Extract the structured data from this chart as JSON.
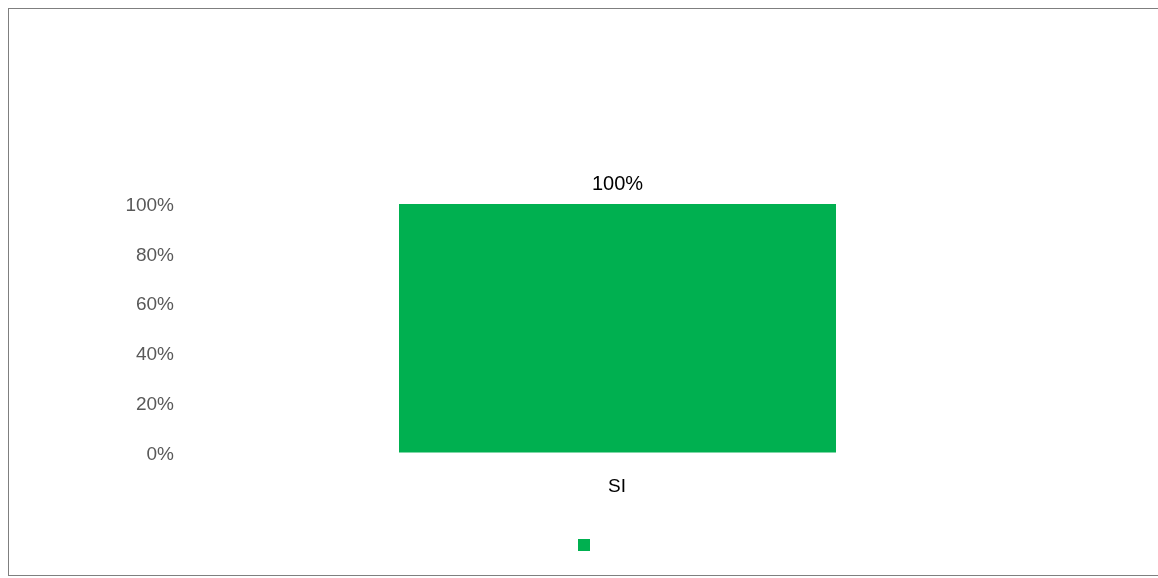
{
  "chart_data": {
    "type": "bar",
    "categories": [
      "SI"
    ],
    "series": [
      {
        "color": "#00b050",
        "values": [
          100
        ],
        "value_labels": [
          "100%"
        ]
      }
    ],
    "ylim": [
      0,
      100
    ],
    "yticks": [
      {
        "value": 0,
        "label": "0%"
      },
      {
        "value": 20,
        "label": "20%"
      },
      {
        "value": 40,
        "label": "40%"
      },
      {
        "value": 60,
        "label": "60%"
      },
      {
        "value": 80,
        "label": "80%"
      },
      {
        "value": 100,
        "label": "100%"
      }
    ],
    "grid": false
  }
}
